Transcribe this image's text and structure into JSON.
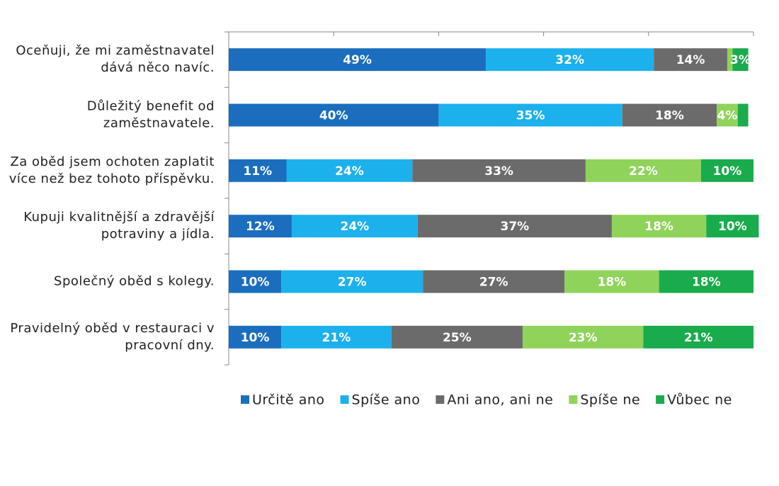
{
  "chart_data": {
    "type": "bar",
    "orientation": "horizontal",
    "stacking": "normal",
    "categories": [
      [
        "Oceňuji, že mi zaměstnavatel",
        "dává něco navíc."
      ],
      [
        "Důležitý benefit od",
        "zaměstnavatele."
      ],
      [
        "Za oběd jsem ochoten zaplatit",
        "více než bez tohoto příspěvku."
      ],
      [
        "Kupuji kvalitnější a zdravější",
        "potraviny a jídla."
      ],
      [
        "Společný oběd s kolegy."
      ],
      [
        "Pravidelný oběd v restauraci v",
        "pracovní dny."
      ]
    ],
    "series": [
      {
        "name": "Určitě ano",
        "color": "#1a6ebd",
        "values": [
          49,
          40,
          11,
          12,
          10,
          10
        ],
        "value_labels": [
          "49%",
          "40%",
          "11%",
          "12%",
          "10%",
          "10%"
        ]
      },
      {
        "name": "Spíše ano",
        "color": "#1cb1ec",
        "values": [
          32,
          35,
          24,
          24,
          27,
          21
        ],
        "value_labels": [
          "32%",
          "35%",
          "24%",
          "24%",
          "27%",
          "21%"
        ]
      },
      {
        "name": "Ani ano, ani ne",
        "color": "#6b6b6b",
        "values": [
          14,
          18,
          33,
          37,
          27,
          25
        ],
        "value_labels": [
          "14%",
          "18%",
          "33%",
          "37%",
          "27%",
          "25%"
        ]
      },
      {
        "name": "Spíše ne",
        "color": "#8fd35a",
        "values": [
          1,
          4,
          22,
          18,
          18,
          23
        ],
        "value_labels": [
          null,
          "4%",
          "22%",
          "18%",
          "18%",
          "23%"
        ]
      },
      {
        "name": "Vůbec ne",
        "color": "#19ab4c",
        "values": [
          3,
          2,
          10,
          10,
          18,
          21
        ],
        "value_labels": [
          "3%",
          null,
          "10%",
          "10%",
          "18%",
          "21%"
        ]
      }
    ],
    "xlim": [
      0,
      100
    ],
    "xticks": [
      0,
      20,
      40,
      60,
      80,
      100
    ],
    "legend": "bottom"
  }
}
